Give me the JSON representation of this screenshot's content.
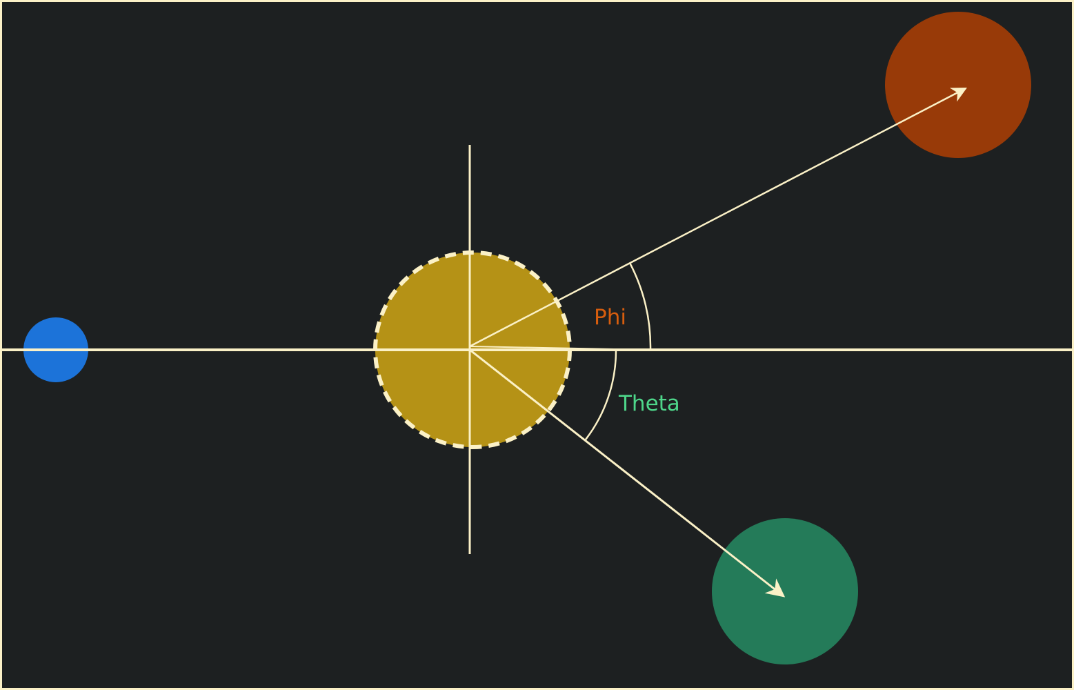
{
  "diagram": {
    "labels": {
      "phi": "Phi",
      "theta": "Theta"
    },
    "colors": {
      "background": "#1d2021",
      "line": "#fbf1c7",
      "center_body": "#b59216",
      "target_upper": "#983a08",
      "target_lower": "#247b59",
      "left_marker": "#1c73d9",
      "phi_label": "#d65d0e",
      "theta_label": "#4ed68a"
    }
  }
}
